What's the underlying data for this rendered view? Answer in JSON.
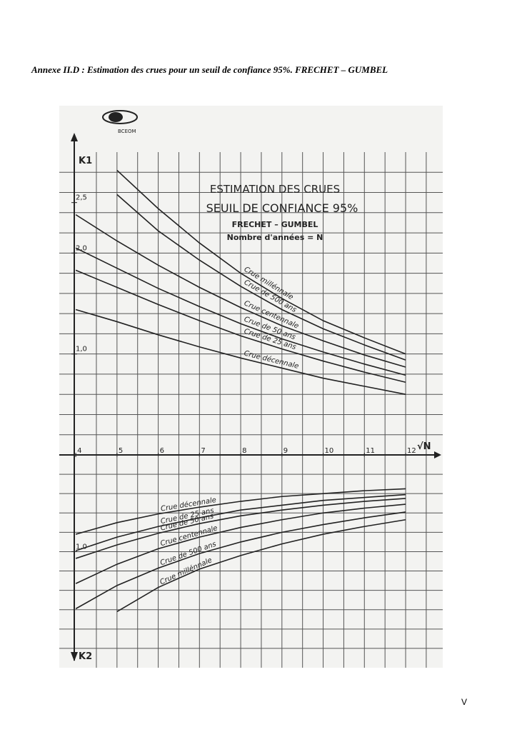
{
  "header": {
    "title": "Annexe II.D : Estimation des crues pour un seuil de confiance 95%. FRECHET – GUMBEL"
  },
  "page_number": "V",
  "chart_data": [
    {
      "type": "line",
      "logo": "BCEOM",
      "title": "ESTIMATION DES CRUES",
      "subtitle": "SEUIL DE CONFIANCE 95%",
      "annotations": [
        "FRECHET – GUMBEL",
        "Nombre d'années = N"
      ],
      "x_label": "√N",
      "y_label": "K1",
      "x": [
        4,
        5,
        6,
        7,
        8,
        9,
        10,
        11,
        12
      ],
      "xlim": [
        3.6,
        12.9
      ],
      "xticks": [
        4,
        5,
        6,
        7,
        8,
        9,
        10,
        11,
        12
      ],
      "xgrid": [
        4.5,
        5,
        5.5,
        6,
        6.5,
        7,
        7.5,
        8,
        8.5,
        9,
        9.5,
        10,
        10.5,
        11,
        11.5,
        12,
        12.5
      ],
      "ylim": [
        0,
        3
      ],
      "yticks": [
        {
          "value": 1,
          "label": "1,0"
        },
        {
          "value": 2,
          "label": "2,0"
        },
        {
          "value": 2.5,
          "label": "2,5"
        }
      ],
      "ygrid": [
        0.2,
        0.4,
        0.6,
        0.8,
        1,
        1.2,
        1.4,
        1.6,
        1.8,
        2,
        2.2,
        2.4,
        2.6,
        2.8
      ],
      "series": [
        {
          "name": "Crue millénnale",
          "color": "#222222",
          "values": [
            null,
            2.82,
            2.44,
            2.1,
            1.8,
            1.55,
            1.33,
            1.16,
            1.0
          ]
        },
        {
          "name": "Crue de 500 ans",
          "color": "#222222",
          "values": [
            null,
            2.58,
            2.22,
            1.93,
            1.67,
            1.44,
            1.25,
            1.09,
            0.94
          ]
        },
        {
          "name": "Crue centennale",
          "color": "#222222",
          "values": [
            2.38,
            2.12,
            1.88,
            1.66,
            1.46,
            1.28,
            1.13,
            0.99,
            0.87
          ]
        },
        {
          "name": "Crue de 50 ans",
          "color": "#222222",
          "values": [
            2.05,
            1.85,
            1.65,
            1.47,
            1.3,
            1.15,
            1.02,
            0.9,
            0.79
          ]
        },
        {
          "name": "Crue de 25 ans",
          "color": "#222222",
          "values": [
            1.83,
            1.66,
            1.49,
            1.33,
            1.18,
            1.05,
            0.93,
            0.82,
            0.72
          ]
        },
        {
          "name": "Crue décennale",
          "color": "#222222",
          "values": [
            1.44,
            1.32,
            1.19,
            1.07,
            0.96,
            0.86,
            0.76,
            0.68,
            0.6
          ]
        }
      ]
    },
    {
      "type": "line",
      "y_label": "K2",
      "y_inverted": true,
      "x": [
        4,
        5,
        6,
        7,
        8,
        9,
        10,
        11,
        12
      ],
      "xlim": [
        3.6,
        12.9
      ],
      "ylim": [
        0,
        2.2
      ],
      "yticks": [
        {
          "value": 1,
          "label": "1,0"
        }
      ],
      "ygrid": [
        0.2,
        0.4,
        0.6,
        0.8,
        1,
        1.2,
        1.4,
        1.6,
        1.8,
        2
      ],
      "series": [
        {
          "name": "Crue décennale",
          "color": "#222222",
          "values": [
            0.82,
            0.7,
            0.61,
            0.54,
            0.48,
            0.43,
            0.4,
            0.37,
            0.35
          ]
        },
        {
          "name": "Crue de 25 ans",
          "color": "#222222",
          "values": [
            0.99,
            0.85,
            0.74,
            0.65,
            0.57,
            0.52,
            0.47,
            0.44,
            0.41
          ]
        },
        {
          "name": "Crue de 50 ans",
          "color": "#222222",
          "values": [
            1.07,
            0.93,
            0.81,
            0.71,
            0.63,
            0.57,
            0.52,
            0.48,
            0.45
          ]
        },
        {
          "name": "Crue centennale",
          "color": "#222222",
          "values": [
            1.33,
            1.13,
            0.97,
            0.85,
            0.75,
            0.67,
            0.6,
            0.55,
            0.51
          ]
        },
        {
          "name": "Crue de 500 ans",
          "color": "#222222",
          "values": [
            1.59,
            1.35,
            1.17,
            1.02,
            0.9,
            0.8,
            0.72,
            0.65,
            0.59
          ]
        },
        {
          "name": "Crue millénnale",
          "color": "#222222",
          "values": [
            null,
            1.62,
            1.37,
            1.18,
            1.04,
            0.92,
            0.82,
            0.74,
            0.67
          ]
        }
      ]
    }
  ]
}
